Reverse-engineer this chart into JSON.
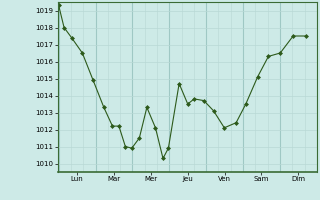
{
  "x_data": [
    0,
    0.25,
    0.6,
    1.1,
    1.6,
    2.1,
    2.5,
    2.8,
    3.1,
    3.4,
    3.75,
    4.1,
    4.5,
    4.85,
    5.1,
    5.6,
    6.0,
    6.3,
    6.75,
    7.2,
    7.7,
    8.25,
    8.7,
    9.25,
    9.75,
    10.3,
    10.9,
    11.5
  ],
  "y_data": [
    1019.3,
    1018.0,
    1017.4,
    1016.5,
    1014.9,
    1013.3,
    1012.2,
    1012.2,
    1011.0,
    1010.9,
    1011.5,
    1013.3,
    1012.1,
    1010.3,
    1010.9,
    1014.7,
    1013.5,
    1013.8,
    1013.7,
    1013.1,
    1012.1,
    1012.4,
    1013.5,
    1015.1,
    1016.3,
    1016.5,
    1017.5,
    1017.5
  ],
  "xlim": [
    -0.05,
    12.0
  ],
  "ylim": [
    1009.5,
    1019.5
  ],
  "yticks": [
    1010,
    1011,
    1012,
    1013,
    1014,
    1015,
    1016,
    1017,
    1018,
    1019
  ],
  "x_day_labels": [
    "Lun",
    "Mar",
    "Mer",
    "Jeu",
    "Ven",
    "Sam",
    "Dim"
  ],
  "line_color": "#2d5a1b",
  "bg_color": "#cdeae7",
  "grid_minor_color": "#b8d8d5",
  "grid_major_color": "#9fc8c4",
  "spine_color": "#3a6b35"
}
